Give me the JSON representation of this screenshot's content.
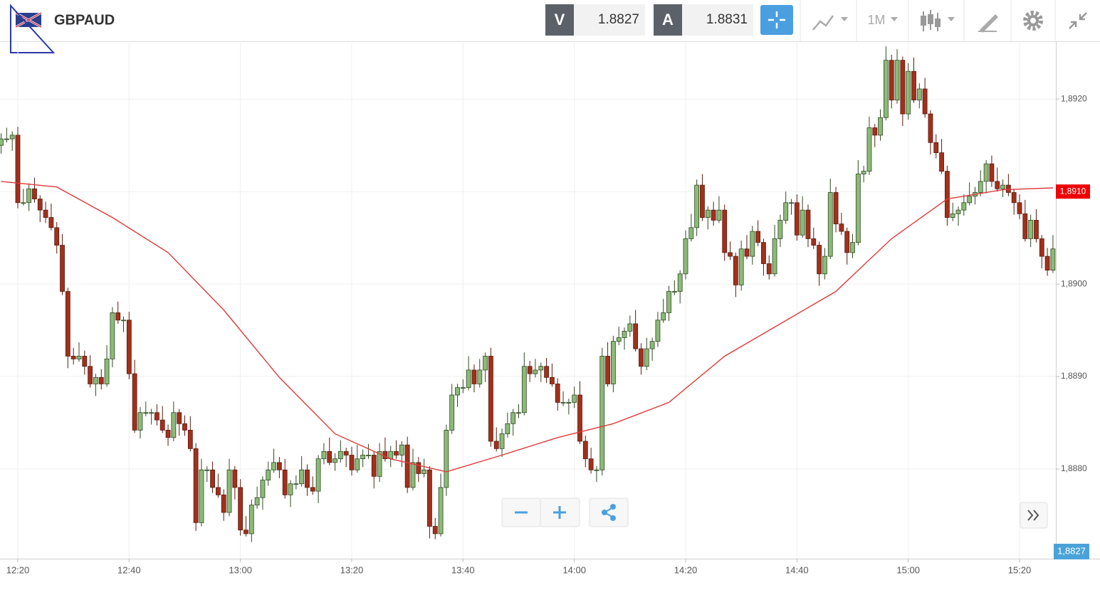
{
  "header": {
    "symbol": "GBPAUD",
    "sell": {
      "label": "V",
      "price": "1.8827"
    },
    "buy": {
      "label": "A",
      "price": "1.8831"
    },
    "timeframe": "1M"
  },
  "chart_data": {
    "type": "candlestick",
    "grid": true,
    "up_color": "#8cba78",
    "down_color": "#a2301c",
    "x": [
      "12:17",
      "12:18",
      "12:19",
      "12:20",
      "12:21",
      "12:22",
      "12:23",
      "12:24",
      "12:25",
      "12:26",
      "12:27",
      "12:28",
      "12:29",
      "12:30",
      "12:31",
      "12:32",
      "12:33",
      "12:34",
      "12:35",
      "12:36",
      "12:37",
      "12:38",
      "12:39",
      "12:40",
      "12:41",
      "12:42",
      "12:43",
      "12:44",
      "12:45",
      "12:46",
      "12:47",
      "12:48",
      "12:49",
      "12:50",
      "12:51",
      "12:52",
      "12:53",
      "12:54",
      "12:55",
      "12:56",
      "12:57",
      "12:58",
      "12:59",
      "13:00",
      "13:01",
      "13:02",
      "13:03",
      "13:04",
      "13:05",
      "13:06",
      "13:07",
      "13:08",
      "13:09",
      "13:10",
      "13:11",
      "13:12",
      "13:13",
      "13:14",
      "13:15",
      "13:16",
      "13:17",
      "13:18",
      "13:19",
      "13:20",
      "13:21",
      "13:22",
      "13:23",
      "13:24",
      "13:25",
      "13:26",
      "13:27",
      "13:28",
      "13:29",
      "13:30",
      "13:31",
      "13:32",
      "13:33",
      "13:34",
      "13:35",
      "13:36",
      "13:37",
      "13:38",
      "13:39",
      "13:40",
      "13:41",
      "13:42",
      "13:43",
      "13:44",
      "13:45",
      "13:46",
      "13:47",
      "13:48",
      "13:49",
      "13:50",
      "13:51",
      "13:52",
      "13:53",
      "13:54",
      "13:55",
      "13:56",
      "13:57",
      "13:58",
      "13:59",
      "14:00",
      "14:01",
      "14:02",
      "14:03",
      "14:04",
      "14:05",
      "14:06",
      "14:07",
      "14:08",
      "14:09",
      "14:10",
      "14:11",
      "14:12",
      "14:13",
      "14:14",
      "14:15",
      "14:16",
      "14:17",
      "14:18",
      "14:19",
      "14:20",
      "14:21",
      "14:22",
      "14:23",
      "14:24",
      "14:25",
      "14:26",
      "14:27",
      "14:28",
      "14:29",
      "14:30",
      "14:31",
      "14:32",
      "14:33",
      "14:34",
      "14:35",
      "14:36",
      "14:37",
      "14:38",
      "14:39",
      "14:40",
      "14:41",
      "14:42",
      "14:43",
      "14:44",
      "14:45",
      "14:46",
      "14:47",
      "14:48",
      "14:49",
      "14:50",
      "14:51",
      "14:52",
      "14:53",
      "14:54",
      "14:55",
      "14:56",
      "14:57",
      "14:58",
      "14:59",
      "15:00",
      "15:01",
      "15:02",
      "15:03",
      "15:04",
      "15:05",
      "15:06",
      "15:07",
      "15:08",
      "15:09",
      "15:10",
      "15:11",
      "15:12",
      "15:13",
      "15:14",
      "15:15",
      "15:16",
      "15:17",
      "15:18",
      "15:19",
      "15:20",
      "15:21",
      "15:22",
      "15:23",
      "15:24",
      "15:25",
      "15:26"
    ],
    "open": [
      1.8915,
      1.89157,
      1.89157,
      1.89161,
      1.89088,
      1.89088,
      1.89103,
      1.89092,
      1.8908,
      1.89072,
      1.89061,
      1.89042,
      1.88992,
      1.88922,
      1.88919,
      1.88922,
      1.88911,
      1.88892,
      1.88899,
      1.88892,
      1.88919,
      1.88969,
      1.88961,
      1.88961,
      1.88903,
      1.88842,
      1.88861,
      1.88861,
      1.88861,
      1.88853,
      1.88842,
      1.88834,
      1.88861,
      1.88849,
      1.88842,
      1.88822,
      1.88742,
      1.88799,
      1.88799,
      1.8878,
      1.88772,
      1.88753,
      1.88799,
      1.8878,
      1.88734,
      1.8873,
      1.88761,
      1.88769,
      1.88788,
      1.88799,
      1.88807,
      1.88799,
      1.88772,
      1.88784,
      1.88784,
      1.88799,
      1.8878,
      1.88776,
      1.88811,
      1.88819,
      1.88807,
      1.88811,
      1.88819,
      1.88815,
      1.88799,
      1.88811,
      1.88815,
      1.88815,
      1.88792,
      1.88819,
      1.88811,
      1.88819,
      1.88815,
      1.88826,
      1.8878,
      1.88807,
      1.88795,
      1.88799,
      1.88738,
      1.8873,
      1.8878,
      1.88842,
      1.8888,
      1.88888,
      1.88888,
      1.88907,
      1.88892,
      1.88907,
      1.88922,
      1.8883,
      1.88822,
      1.88838,
      1.88849,
      1.88861,
      1.88861,
      1.88911,
      1.88903,
      1.88907,
      1.88911,
      1.88899,
      1.88892,
      1.88872,
      1.88872,
      1.88872,
      1.8888,
      1.8883,
      1.88811,
      1.88799,
      1.88799,
      1.88922,
      1.88892,
      1.88938,
      1.88942,
      1.88949,
      1.88957,
      1.8893,
      1.88911,
      1.8893,
      1.88938,
      1.88961,
      1.88969,
      1.88992,
      1.88992,
      1.89011,
      1.89049,
      1.89061,
      1.89107,
      1.89072,
      1.8908,
      1.89069,
      1.8908,
      1.89034,
      1.8903,
      1.88999,
      1.89038,
      1.8903,
      1.89057,
      1.89045,
      1.89022,
      1.89011,
      1.89049,
      1.89069,
      1.89088,
      1.89088,
      1.89053,
      1.8908,
      1.89049,
      1.89042,
      1.89011,
      1.8903,
      1.89099,
      1.89065,
      1.89057,
      1.89034,
      1.89045,
      1.89119,
      1.89122,
      1.89169,
      1.89161,
      1.8918,
      1.89242,
      1.89199,
      1.89242,
      1.89184,
      1.8923,
      1.89199,
      1.89211,
      1.89184,
      1.89153,
      1.89142,
      1.89122,
      1.89072,
      1.89076,
      1.8908,
      1.89088,
      1.89095,
      1.89099,
      1.89111,
      1.8913,
      1.89111,
      1.89103,
      1.89107,
      1.89099,
      1.89088,
      1.89076,
      1.89049,
      1.89069,
      1.89049,
      1.8903,
      1.89015
    ],
    "high": [
      1.89163,
      1.89169,
      1.89165,
      1.8917,
      1.89103,
      1.89109,
      1.89115,
      1.89096,
      1.89089,
      1.89087,
      1.89067,
      1.89054,
      1.88996,
      1.88931,
      1.88937,
      1.88928,
      1.88923,
      1.88903,
      1.88908,
      1.88934,
      1.88975,
      1.88981,
      1.88965,
      1.8897,
      1.88918,
      1.88867,
      1.88873,
      1.88865,
      1.8887,
      1.88868,
      1.88848,
      1.88873,
      1.88865,
      1.88858,
      1.88857,
      1.88828,
      1.88811,
      1.88803,
      1.88808,
      1.88795,
      1.88778,
      1.88811,
      1.88803,
      1.88789,
      1.88749,
      1.88767,
      1.88781,
      1.88792,
      1.88808,
      1.88822,
      1.88813,
      1.88811,
      1.88788,
      1.88793,
      1.88814,
      1.88805,
      1.88792,
      1.88815,
      1.88828,
      1.88834,
      1.88817,
      1.88831,
      1.88823,
      1.88824,
      1.88826,
      1.88821,
      1.88827,
      1.88819,
      1.88828,
      1.88834,
      1.88825,
      1.88831,
      1.8883,
      1.88835,
      1.88822,
      1.88813,
      1.88811,
      1.88803,
      1.88747,
      1.88795,
      1.88848,
      1.88892,
      1.88892,
      1.88897,
      1.88922,
      1.88913,
      1.88919,
      1.88926,
      1.88931,
      1.88845,
      1.88844,
      1.88861,
      1.88865,
      1.8887,
      1.88926,
      1.88917,
      1.88919,
      1.88915,
      1.8892,
      1.88914,
      1.88898,
      1.88884,
      1.88876,
      1.88889,
      1.88895,
      1.88836,
      1.88823,
      1.88803,
      1.88931,
      1.88937,
      1.88944,
      1.88954,
      1.88953,
      1.88966,
      1.88972,
      1.88936,
      1.88942,
      1.88942,
      1.8897,
      1.88984,
      1.88998,
      1.89004,
      1.89015,
      1.89058,
      1.89076,
      1.89113,
      1.89119,
      1.89084,
      1.89089,
      1.89095,
      1.89086,
      1.89046,
      1.89034,
      1.89047,
      1.89053,
      1.89063,
      1.89069,
      1.89049,
      1.89031,
      1.89064,
      1.89075,
      1.891,
      1.89092,
      1.89097,
      1.89095,
      1.89086,
      1.89061,
      1.89046,
      1.89039,
      1.89114,
      1.89105,
      1.89077,
      1.89061,
      1.89054,
      1.89134,
      1.89128,
      1.89181,
      1.89173,
      1.89189,
      1.89257,
      1.89248,
      1.89254,
      1.89246,
      1.89239,
      1.89245,
      1.89217,
      1.89223,
      1.89188,
      1.89162,
      1.89157,
      1.89128,
      1.89088,
      1.89084,
      1.89097,
      1.8911,
      1.89105,
      1.89123,
      1.89134,
      1.89139,
      1.89126,
      1.89113,
      1.89119,
      1.89103,
      1.89097,
      1.89091,
      1.89075,
      1.89081,
      1.89053,
      1.89039,
      1.89053
    ],
    "low": [
      1.89141,
      1.89153,
      1.89144,
      1.89082,
      1.89085,
      1.89079,
      1.89088,
      1.89067,
      1.89066,
      1.89058,
      1.89033,
      1.88988,
      1.88909,
      1.88913,
      1.88916,
      1.88902,
      1.88888,
      1.88879,
      1.88886,
      1.88889,
      1.8891,
      1.88957,
      1.88948,
      1.88897,
      1.88839,
      1.88833,
      1.88857,
      1.88848,
      1.88847,
      1.88839,
      1.88825,
      1.8883,
      1.88836,
      1.88836,
      1.88819,
      1.88733,
      1.88738,
      1.88786,
      1.88774,
      1.88769,
      1.88744,
      1.88749,
      1.88767,
      1.88728,
      1.88727,
      1.88721,
      1.88757,
      1.88756,
      1.88782,
      1.88796,
      1.8879,
      1.88768,
      1.88759,
      1.88778,
      1.88781,
      1.88771,
      1.88772,
      1.88763,
      1.88805,
      1.88804,
      1.88798,
      1.88807,
      1.88802,
      1.88793,
      1.88796,
      1.88802,
      1.88811,
      1.88779,
      1.88786,
      1.88808,
      1.88802,
      1.88811,
      1.88802,
      1.88774,
      1.88777,
      1.88786,
      1.88791,
      1.88725,
      1.88724,
      1.88727,
      1.88771,
      1.88838,
      1.88867,
      1.88882,
      1.88885,
      1.88883,
      1.88888,
      1.88894,
      1.88824,
      1.88819,
      1.88813,
      1.88834,
      1.88836,
      1.88855,
      1.88858,
      1.88894,
      1.88899,
      1.88894,
      1.88893,
      1.88889,
      1.88863,
      1.88868,
      1.88859,
      1.88866,
      1.88827,
      1.88802,
      1.88795,
      1.88786,
      1.88793,
      1.88889,
      1.88883,
      1.88934,
      1.88929,
      1.88943,
      1.88927,
      1.88902,
      1.88907,
      1.88917,
      1.88932,
      1.88958,
      1.8896,
      1.88988,
      1.88979,
      1.89005,
      1.89046,
      1.89052,
      1.89068,
      1.89059,
      1.89063,
      1.89066,
      1.89025,
      1.89026,
      1.88986,
      1.88993,
      1.89027,
      1.89021,
      1.89041,
      1.89009,
      1.89005,
      1.89008,
      1.8904,
      1.89065,
      1.89075,
      1.89047,
      1.8905,
      1.8904,
      1.89038,
      1.88998,
      1.89005,
      1.89027,
      1.89056,
      1.89053,
      1.89021,
      1.89028,
      1.89042,
      1.8911,
      1.89118,
      1.89148,
      1.89155,
      1.89177,
      1.8919,
      1.89195,
      1.89171,
      1.89178,
      1.89196,
      1.8919,
      1.8918,
      1.8914,
      1.89136,
      1.89119,
      1.89063,
      1.89068,
      1.89063,
      1.89074,
      1.89085,
      1.89086,
      1.89095,
      1.89098,
      1.89105,
      1.891,
      1.89094,
      1.89095,
      1.89075,
      1.8907,
      1.89046,
      1.8904,
      1.89045,
      1.89017,
      1.89009,
      1.89012
    ],
    "close": [
      1.89157,
      1.89157,
      1.89161,
      1.89088,
      1.89088,
      1.89103,
      1.89092,
      1.8908,
      1.89072,
      1.89061,
      1.89042,
      1.88992,
      1.88922,
      1.88919,
      1.88922,
      1.88911,
      1.88892,
      1.88899,
      1.88892,
      1.88919,
      1.88969,
      1.88961,
      1.88961,
      1.88903,
      1.88842,
      1.88861,
      1.88861,
      1.88861,
      1.88853,
      1.88842,
      1.88834,
      1.88861,
      1.88849,
      1.88842,
      1.88822,
      1.88742,
      1.88799,
      1.88799,
      1.8878,
      1.88772,
      1.88753,
      1.88799,
      1.8878,
      1.88734,
      1.8873,
      1.88761,
      1.88769,
      1.88788,
      1.88799,
      1.88807,
      1.88799,
      1.88772,
      1.88784,
      1.88784,
      1.88799,
      1.8878,
      1.88776,
      1.88811,
      1.88819,
      1.88807,
      1.88811,
      1.88819,
      1.88815,
      1.88799,
      1.88811,
      1.88815,
      1.88815,
      1.88792,
      1.88819,
      1.88811,
      1.88819,
      1.88815,
      1.88826,
      1.8878,
      1.88807,
      1.88795,
      1.88799,
      1.88738,
      1.8873,
      1.8878,
      1.88842,
      1.8888,
      1.88888,
      1.88888,
      1.88907,
      1.88892,
      1.88907,
      1.88922,
      1.8883,
      1.88822,
      1.88838,
      1.88849,
      1.88861,
      1.88861,
      1.88911,
      1.88903,
      1.88907,
      1.88911,
      1.88899,
      1.88892,
      1.88872,
      1.88872,
      1.88872,
      1.8888,
      1.8883,
      1.88811,
      1.88799,
      1.88799,
      1.88922,
      1.88892,
      1.88938,
      1.88942,
      1.88949,
      1.88957,
      1.8893,
      1.88911,
      1.8893,
      1.88938,
      1.88961,
      1.88969,
      1.88992,
      1.88992,
      1.89011,
      1.89049,
      1.89061,
      1.89107,
      1.89072,
      1.8908,
      1.89069,
      1.8908,
      1.89034,
      1.8903,
      1.88999,
      1.89038,
      1.8903,
      1.89057,
      1.89045,
      1.89022,
      1.89011,
      1.89049,
      1.89069,
      1.89088,
      1.89088,
      1.89053,
      1.8908,
      1.89049,
      1.89042,
      1.89011,
      1.8903,
      1.89099,
      1.89065,
      1.89057,
      1.89034,
      1.89045,
      1.89119,
      1.89122,
      1.89169,
      1.89161,
      1.8918,
      1.89242,
      1.89199,
      1.89242,
      1.89184,
      1.8923,
      1.89199,
      1.89211,
      1.89184,
      1.89153,
      1.89142,
      1.89122,
      1.89072,
      1.89076,
      1.8908,
      1.89088,
      1.89095,
      1.89099,
      1.89111,
      1.8913,
      1.89111,
      1.89103,
      1.89107,
      1.89099,
      1.89088,
      1.89076,
      1.89049,
      1.89069,
      1.89049,
      1.8903,
      1.89015,
      1.89038
    ],
    "moving_average": {
      "color": "#e03a3a",
      "x": [
        "12:17",
        "12:27",
        "12:37",
        "12:47",
        "12:57",
        "13:07",
        "13:17",
        "13:27",
        "13:37",
        "13:47",
        "13:57",
        "14:07",
        "14:17",
        "14:27",
        "14:37",
        "14:47",
        "14:57",
        "15:07",
        "15:17",
        "15:26"
      ],
      "values": [
        1.89111,
        1.89105,
        1.89072,
        1.89034,
        1.88972,
        1.88899,
        1.88838,
        1.88811,
        1.88797,
        1.88815,
        1.88834,
        1.88849,
        1.88872,
        1.88922,
        1.88957,
        1.88992,
        1.89049,
        1.89092,
        1.89102,
        1.89104
      ]
    },
    "ma_label": {
      "value": 1.891,
      "label": "1,8910"
    },
    "price_badge": "1,8827",
    "ylim": [
      1.88703,
      1.89261
    ],
    "yticks": [
      {
        "value": 1.888,
        "label": "1,8880"
      },
      {
        "value": 1.889,
        "label": "1,8890"
      },
      {
        "value": 1.89,
        "label": "1,8900"
      },
      {
        "value": 1.891,
        "label": "1,8910"
      },
      {
        "value": 1.892,
        "label": "1,8920"
      }
    ],
    "xticks": [
      "12:20",
      "12:40",
      "13:00",
      "13:20",
      "13:40",
      "14:00",
      "14:20",
      "14:40",
      "15:00",
      "15:20"
    ]
  }
}
